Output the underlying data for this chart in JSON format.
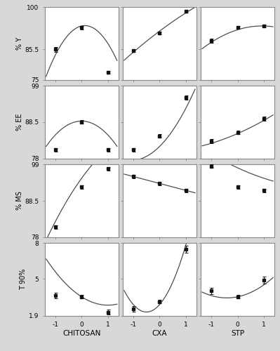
{
  "rows": [
    "% Y",
    "% EE",
    "% MS",
    "T 90%"
  ],
  "cols": [
    "CHITOSAN",
    "CXA",
    "STP"
  ],
  "x_ticks": [
    -1,
    0,
    1
  ],
  "x_lim": [
    -1.4,
    1.4
  ],
  "ylims": [
    [
      [
        75,
        100
      ],
      [
        75,
        100
      ],
      [
        75,
        100
      ]
    ],
    [
      [
        78,
        99
      ],
      [
        78,
        99
      ],
      [
        78,
        99
      ]
    ],
    [
      [
        78,
        99
      ],
      [
        78,
        99
      ],
      [
        78,
        99
      ]
    ],
    [
      [
        1.9,
        8
      ],
      [
        1.9,
        8
      ],
      [
        1.9,
        8
      ]
    ]
  ],
  "yticks": [
    [
      [
        75,
        85.5,
        100
      ],
      [
        75,
        85.5,
        100
      ],
      [
        75,
        85.5,
        100
      ]
    ],
    [
      [
        78,
        88.5,
        99
      ],
      [
        78,
        88.5,
        99
      ],
      [
        78,
        88.5,
        99
      ]
    ],
    [
      [
        78,
        88.5,
        99
      ],
      [
        78,
        88.5,
        99
      ],
      [
        78,
        88.5,
        99
      ]
    ],
    [
      [
        1.9,
        5,
        8
      ],
      [
        1.9,
        5,
        8
      ],
      [
        1.9,
        5,
        8
      ]
    ]
  ],
  "data_points": {
    "Y": {
      "CHITOSAN": {
        "x": [
          -1,
          0,
          1
        ],
        "y": [
          85.5,
          93.0,
          77.5
        ],
        "yerr": [
          0.8,
          0.6,
          0.5
        ]
      },
      "CXA": {
        "x": [
          -1,
          0,
          1
        ],
        "y": [
          85.0,
          91.0,
          98.5
        ],
        "yerr": [
          0.5,
          0.5,
          0.5
        ]
      },
      "STP": {
        "x": [
          -1,
          0,
          1
        ],
        "y": [
          88.5,
          93.0,
          93.5
        ],
        "yerr": [
          0.7,
          0.5,
          0.5
        ]
      }
    },
    "EE": {
      "CHITOSAN": {
        "x": [
          -1,
          0,
          1
        ],
        "y": [
          80.5,
          88.5,
          80.5
        ],
        "yerr": [
          0.6,
          0.5,
          0.5
        ]
      },
      "CXA": {
        "x": [
          -1,
          0,
          1
        ],
        "y": [
          80.5,
          84.5,
          95.5
        ],
        "yerr": [
          0.6,
          0.5,
          0.6
        ]
      },
      "STP": {
        "x": [
          -1,
          0,
          1
        ],
        "y": [
          83.0,
          85.5,
          89.5
        ],
        "yerr": [
          0.6,
          0.5,
          0.6
        ]
      }
    },
    "MS": {
      "CHITOSAN": {
        "x": [
          -1,
          0,
          1
        ],
        "y": [
          81.0,
          92.5,
          97.8
        ],
        "yerr": [
          0.5,
          0.5,
          0.5
        ]
      },
      "CXA": {
        "x": [
          -1,
          0,
          1
        ],
        "y": [
          95.5,
          93.5,
          91.5
        ],
        "yerr": [
          0.5,
          0.5,
          0.5
        ]
      },
      "STP": {
        "x": [
          -1,
          0,
          1
        ],
        "y": [
          98.5,
          92.5,
          91.5
        ],
        "yerr": [
          0.5,
          0.5,
          0.5
        ]
      }
    },
    "T90": {
      "CHITOSAN": {
        "x": [
          -1,
          0,
          1
        ],
        "y": [
          3.6,
          3.5,
          2.2
        ],
        "yerr": [
          0.25,
          0.15,
          0.2
        ]
      },
      "CXA": {
        "x": [
          -1,
          0,
          1
        ],
        "y": [
          2.5,
          3.1,
          7.5
        ],
        "yerr": [
          0.25,
          0.15,
          0.3
        ]
      },
      "STP": {
        "x": [
          -1,
          0,
          1
        ],
        "y": [
          4.0,
          3.5,
          4.9
        ],
        "yerr": [
          0.25,
          0.15,
          0.3
        ]
      }
    }
  },
  "curves": {
    "Y": {
      "CHITOSAN": {
        "coeffs": [
          -8.0,
          2.0,
          93.5
        ]
      },
      "CXA": {
        "coeffs": [
          -0.5,
          6.75,
          91.75
        ]
      },
      "STP": {
        "coeffs": [
          -1.5,
          2.8,
          92.2
        ]
      }
    },
    "EE": {
      "CHITOSAN": {
        "coeffs": [
          -4.0,
          0.0,
          88.8
        ]
      },
      "CXA": {
        "coeffs": [
          3.5,
          7.5,
          81.5
        ]
      },
      "STP": {
        "coeffs": [
          0.5,
          3.3,
          85.2
        ]
      }
    },
    "MS": {
      "CHITOSAN": {
        "coeffs": [
          -2.0,
          10.5,
          95.0
        ]
      },
      "CXA": {
        "coeffs": [
          0.0,
          -2.0,
          93.5
        ]
      },
      "STP": {
        "coeffs": [
          0.5,
          -3.5,
          98.0
        ]
      }
    },
    "T90": {
      "CHITOSAN": {
        "coeffs": [
          0.7,
          -1.4,
          3.5
        ]
      },
      "CXA": {
        "coeffs": [
          2.5,
          2.5,
          2.85
        ]
      },
      "STP": {
        "coeffs": [
          0.55,
          0.45,
          3.5
        ]
      }
    }
  },
  "ylabel_fontsize": 7,
  "tick_fontsize": 6.5,
  "xlabel_fontsize": 7.5,
  "marker_size": 3,
  "line_color": "#444444",
  "marker_color": "#111111",
  "bg_color": "#d8d8d8",
  "panel_bg": "#ffffff",
  "border_color": "#888888"
}
